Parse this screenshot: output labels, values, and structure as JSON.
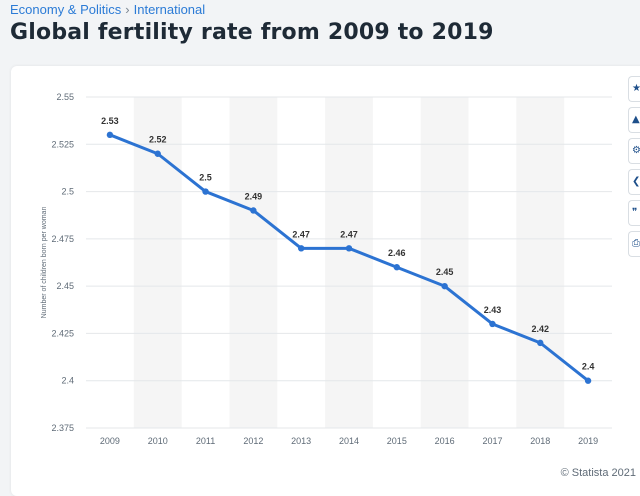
{
  "breadcrumb": {
    "parent": "Economy & Politics",
    "separator": "›",
    "current": "International"
  },
  "page_title": "Global fertility rate from 2009 to 2019",
  "side_tools": [
    {
      "icon": "star-icon",
      "glyph": "★"
    },
    {
      "icon": "alert-icon",
      "glyph": "▲"
    },
    {
      "icon": "settings-icon",
      "glyph": "⚙"
    },
    {
      "icon": "share-icon",
      "glyph": "❮"
    },
    {
      "icon": "quote-icon",
      "glyph": "❞"
    },
    {
      "icon": "print-icon",
      "glyph": "⎙"
    }
  ],
  "copyright": "© Statista 2021",
  "colors": {
    "line": "#2c73d2",
    "band": "#f5f5f5",
    "grid": "#e4e7ea",
    "axis_text": "#5f6b77",
    "label_text": "#333333"
  },
  "chart_data": {
    "type": "line",
    "title": "Global fertility rate from 2009 to 2019",
    "ylabel": "Number of children born per woman",
    "xlabel": "",
    "categories": [
      "2009",
      "2010",
      "2011",
      "2012",
      "2013",
      "2014",
      "2015",
      "2016",
      "2017",
      "2018",
      "2019"
    ],
    "series": [
      {
        "values": [
          2.53,
          2.52,
          2.5,
          2.49,
          2.47,
          2.47,
          2.46,
          2.45,
          2.43,
          2.42,
          2.4
        ]
      }
    ],
    "data_labels": [
      "2.53",
      "2.52",
      "2.5",
      "2.49",
      "2.47",
      "2.47",
      "2.46",
      "2.45",
      "2.43",
      "2.42",
      "2.4"
    ],
    "ylim": [
      2.375,
      2.55
    ],
    "yticks": [
      2.375,
      2.4,
      2.425,
      2.45,
      2.475,
      2.5,
      2.525,
      2.55
    ],
    "ytick_labels": [
      "2.375",
      "2.4",
      "2.425",
      "2.45",
      "2.475",
      "2.5",
      "2.525",
      "2.55"
    ],
    "grid": true,
    "alternating_bands": true,
    "legend": "none"
  }
}
